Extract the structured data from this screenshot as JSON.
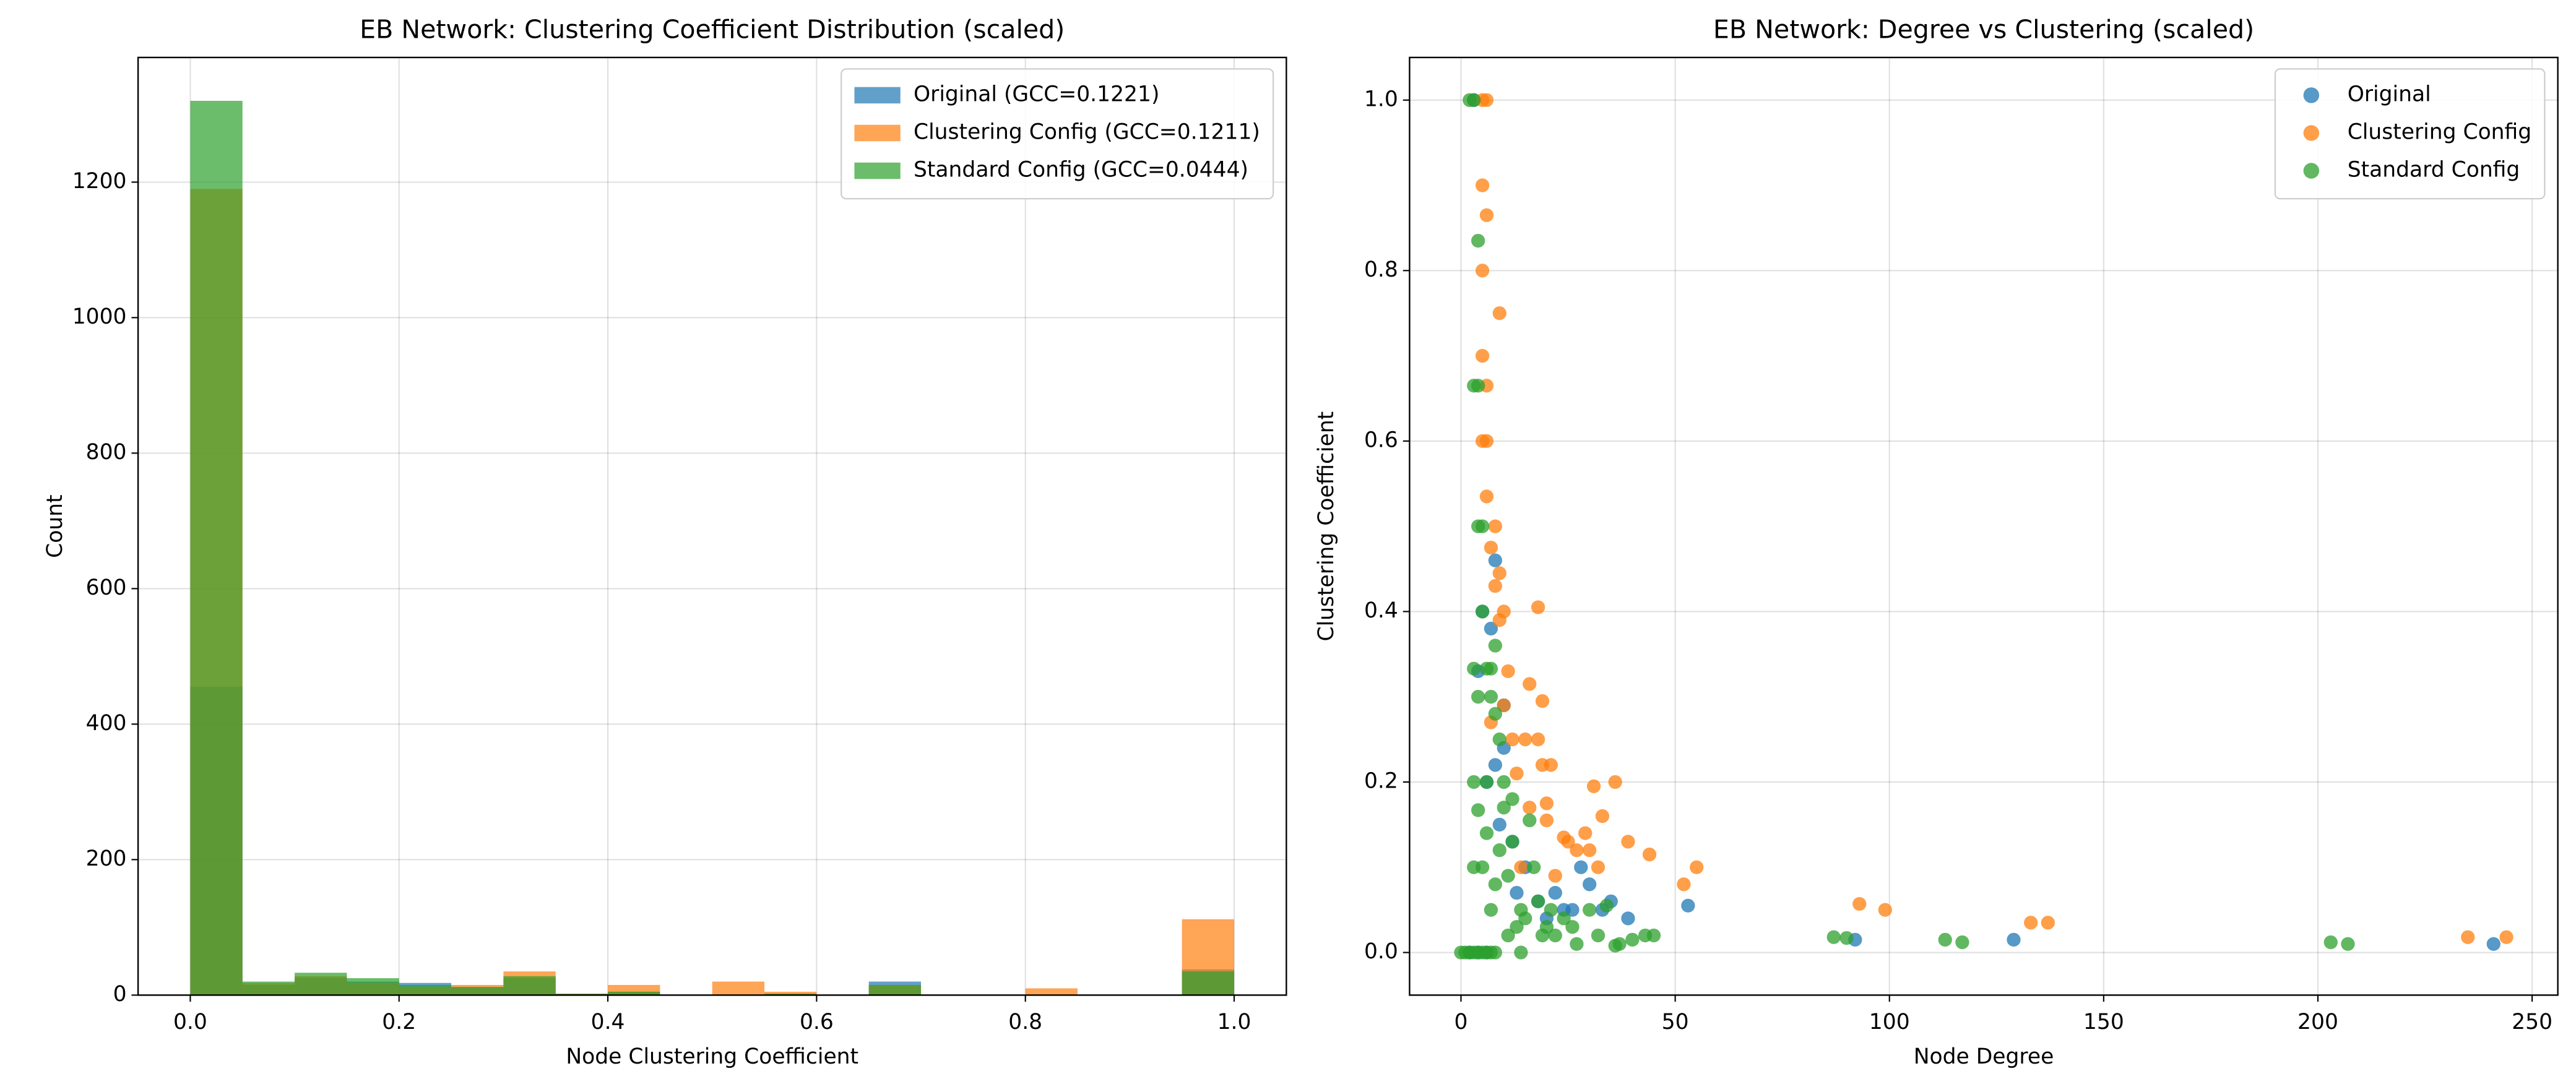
{
  "chart_data": [
    {
      "type": "histogram",
      "title": "EB Network: Clustering Coefficient Distribution (scaled)",
      "xlabel": "Node Clustering Coefficient",
      "ylabel": "Count",
      "bins": [
        0,
        0.05,
        0.1,
        0.15,
        0.2,
        0.25,
        0.3,
        0.35,
        0.4,
        0.45,
        0.5,
        0.55,
        0.6,
        0.65,
        0.7,
        0.75,
        0.8,
        0.85,
        0.9,
        0.95,
        1.0
      ],
      "series": [
        {
          "name": "Original (GCC=0.1221)",
          "color": "#1f77b4",
          "values": [
            455,
            15,
            25,
            20,
            18,
            12,
            25,
            2,
            5,
            0,
            0,
            2,
            0,
            20,
            0,
            0,
            0,
            0,
            0,
            38
          ]
        },
        {
          "name": "Clustering Config (GCC=0.1211)",
          "color": "#ff7f0e",
          "values": [
            1190,
            18,
            28,
            18,
            12,
            15,
            35,
            2,
            15,
            0,
            20,
            5,
            0,
            15,
            0,
            0,
            10,
            0,
            0,
            112
          ]
        },
        {
          "name": "Standard Config (GCC=0.0444)",
          "color": "#2ca02c",
          "values": [
            1320,
            20,
            33,
            25,
            15,
            12,
            28,
            2,
            5,
            0,
            0,
            2,
            0,
            15,
            0,
            0,
            0,
            0,
            0,
            35
          ]
        }
      ],
      "xlim": [
        -0.05,
        1.05
      ],
      "xticks": [
        {
          "value": 0,
          "label": "0.0"
        },
        0.2,
        0.4,
        0.6,
        0.8,
        {
          "value": 1,
          "label": "1.0"
        }
      ],
      "ylim": [
        0,
        1384
      ],
      "yticks": [
        0,
        200,
        400,
        600,
        800,
        1000,
        1200
      ],
      "grid": true,
      "legend": "upper right",
      "alpha": 0.7
    },
    {
      "type": "scatter",
      "title": "EB Network: Degree vs Clustering (scaled)",
      "xlabel": "Node Degree",
      "ylabel": "Clustering Coefficient",
      "series": [
        {
          "name": "Original",
          "color": "#1f77b4",
          "x": [
            241,
            129,
            92,
            53,
            39,
            28,
            30,
            26,
            22,
            18,
            8,
            10,
            8,
            10,
            33,
            12,
            15,
            20,
            3,
            5,
            7,
            4,
            6,
            2,
            4,
            6,
            9,
            13,
            35,
            24
          ],
          "values": [
            0.01,
            0.015,
            0.015,
            0.055,
            0.04,
            0.1,
            0.08,
            0.05,
            0.07,
            0.06,
            0.46,
            0.29,
            0.22,
            0.24,
            0.05,
            0.13,
            0.1,
            0.04,
            1.0,
            0.4,
            0.38,
            0.33,
            0.2,
            0,
            0,
            0,
            0.15,
            0.07,
            0.06,
            0.05
          ]
        },
        {
          "name": "Clustering Config",
          "color": "#ff7f0e",
          "x": [
            244,
            235,
            137,
            133,
            99,
            93,
            55,
            52,
            44,
            39,
            36,
            31,
            33,
            29,
            27,
            32,
            19,
            18,
            16,
            9,
            6,
            5,
            5,
            5,
            6,
            5,
            6,
            6,
            8,
            7,
            9,
            8,
            10,
            9,
            11,
            10,
            12,
            15,
            18,
            19,
            21,
            20,
            24,
            20,
            6,
            5,
            7,
            13,
            16,
            22,
            25,
            14,
            30
          ],
          "values": [
            0.018,
            0.018,
            0.035,
            0.035,
            0.05,
            0.057,
            0.1,
            0.08,
            0.115,
            0.13,
            0.2,
            0.195,
            0.16,
            0.14,
            0.12,
            0.1,
            0.295,
            0.405,
            0.315,
            0.75,
            0.865,
            0.9,
            0.8,
            0.7,
            0.665,
            0.6,
            0.6,
            0.535,
            0.5,
            0.475,
            0.445,
            0.43,
            0.4,
            0.39,
            0.33,
            0.29,
            0.25,
            0.25,
            0.25,
            0.22,
            0.22,
            0.175,
            0.135,
            0.155,
            1.0,
            1.0,
            0.27,
            0.21,
            0.17,
            0.09,
            0.13,
            0.1,
            0.12
          ]
        },
        {
          "name": "Standard Config",
          "color": "#2ca02c",
          "x": [
            207,
            203,
            117,
            113,
            90,
            87,
            45,
            43,
            40,
            37,
            36,
            34,
            32,
            30,
            27,
            26,
            24,
            22,
            20,
            18,
            17,
            16,
            14,
            14,
            12,
            12,
            11,
            10,
            9,
            8,
            8,
            7,
            6,
            5,
            4,
            4,
            3,
            4,
            2,
            3,
            5,
            3,
            6,
            7,
            4,
            3,
            5,
            3,
            4,
            6,
            7,
            8,
            9,
            10,
            0,
            1,
            2,
            3,
            4,
            5,
            6,
            7,
            8,
            11,
            13,
            15,
            19,
            21
          ],
          "values": [
            0.01,
            0.012,
            0.012,
            0.015,
            0.017,
            0.018,
            0.02,
            0.02,
            0.015,
            0.01,
            0.008,
            0.055,
            0.02,
            0.05,
            0.01,
            0.03,
            0.04,
            0.02,
            0.03,
            0.06,
            0.1,
            0.155,
            0.05,
            0,
            0.18,
            0.13,
            0.09,
            0.2,
            0.25,
            0.28,
            0.36,
            0.3,
            0.2,
            0.5,
            0.5,
            0.665,
            0.665,
            0.835,
            1.0,
            1.0,
            0.4,
            0.333,
            0.333,
            0.333,
            0.3,
            0.2,
            0.1,
            0.1,
            0.167,
            0.14,
            0.05,
            0.08,
            0.12,
            0.17,
            0,
            0,
            0,
            0,
            0,
            0,
            0,
            0,
            0,
            0.02,
            0.03,
            0.04,
            0.02,
            0.05
          ]
        }
      ],
      "xlim": [
        -12,
        256
      ],
      "xticks": [
        0,
        50,
        100,
        150,
        200,
        250
      ],
      "ylim": [
        -0.05,
        1.05
      ],
      "yticks": [
        {
          "value": 0,
          "label": "0.0"
        },
        0.2,
        0.4,
        0.6,
        0.8,
        {
          "value": 1,
          "label": "1.0"
        }
      ],
      "grid": true,
      "legend": "upper right",
      "alpha": 0.75
    }
  ]
}
